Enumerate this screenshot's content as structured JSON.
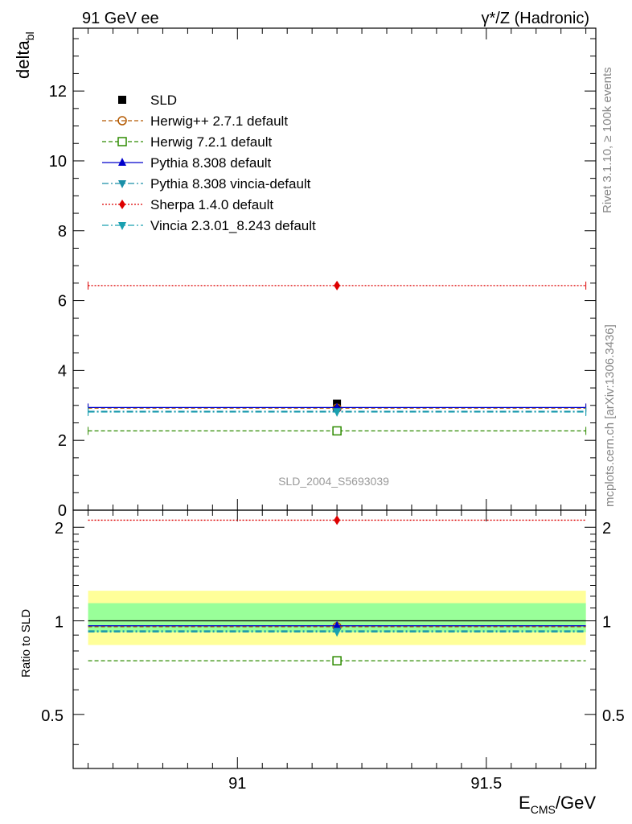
{
  "header": {
    "left": "91 GeV ee",
    "right_gamma": "γ",
    "right_rest": "*/Z (Hadronic)"
  },
  "side_text": {
    "rivet": "Rivet 3.1.10, ≥ 100k events",
    "mcplots": "mcplots.cern.ch [arXiv:1306.3436]"
  },
  "watermark": "SLD_2004_S5693039",
  "chart_data": [
    {
      "type": "scatter",
      "panel": "main",
      "ylabel_main": "delta",
      "ylabel_sub": "bl",
      "xlim": [
        90.67,
        91.72
      ],
      "ylim": [
        0,
        13.8
      ],
      "yticks": [
        0,
        2,
        4,
        6,
        8,
        10,
        12
      ],
      "x_point": 91.2,
      "x_range": [
        90.7,
        91.7
      ],
      "legend_position": "top-left",
      "series": [
        {
          "name": "SLD",
          "value": 3.05,
          "color": "#000000",
          "marker": "square",
          "line": "none"
        },
        {
          "name": "Herwig++ 2.7.1 default",
          "value": 2.92,
          "color": "#b35900",
          "marker": "open-circle",
          "line": "dashed"
        },
        {
          "name": "Herwig 7.2.1 default",
          "value": 2.27,
          "color": "#2e8b00",
          "marker": "open-square",
          "line": "dashed"
        },
        {
          "name": "Pythia 8.308 default",
          "value": 2.94,
          "color": "#0000cc",
          "marker": "triangle-up",
          "line": "solid"
        },
        {
          "name": "Pythia 8.308 vincia-default",
          "value": 2.83,
          "color": "#1a8fa8",
          "marker": "triangle-down",
          "line": "dashdot"
        },
        {
          "name": "Sherpa 1.4.0 default",
          "value": 6.43,
          "color": "#dd0000",
          "marker": "diamond",
          "line": "dotted"
        },
        {
          "name": "Vincia 2.3.01_8.243 default",
          "value": 2.81,
          "color": "#1aa0b0",
          "marker": "triangle-down",
          "line": "dashdot"
        }
      ]
    },
    {
      "type": "scatter",
      "panel": "ratio",
      "ylabel": "Ratio to SLD",
      "xlabel_main": "E",
      "xlabel_sub": "CMS",
      "xlabel_rest": "/GeV",
      "xlim": [
        90.67,
        91.72
      ],
      "ylim": [
        0.335,
        2.27
      ],
      "yticks": [
        0.5,
        1,
        2
      ],
      "ytick_labels": [
        "0.5",
        "1",
        "2"
      ],
      "xticks": [
        91,
        91.5
      ],
      "xtick_labels": [
        "91",
        "91.5"
      ],
      "bands": [
        {
          "lo": 0.836,
          "hi": 1.25,
          "color": "#ffff99"
        },
        {
          "lo": 0.92,
          "hi": 1.14,
          "color": "#99ff99"
        }
      ],
      "series": [
        {
          "name": "SLD",
          "value": 1.0,
          "color": "#000000",
          "line": "solid"
        },
        {
          "name": "Herwig++ 2.7.1 default",
          "value": 0.957,
          "color": "#b35900",
          "marker": "open-circle",
          "line": "dashed"
        },
        {
          "name": "Herwig 7.2.1 default",
          "value": 0.744,
          "color": "#2e8b00",
          "marker": "open-square",
          "line": "dashed"
        },
        {
          "name": "Pythia 8.308 default",
          "value": 0.964,
          "color": "#0000cc",
          "marker": "triangle-up",
          "line": "solid"
        },
        {
          "name": "Pythia 8.308 vincia-default",
          "value": 0.928,
          "color": "#1a8fa8",
          "marker": "triangle-down",
          "line": "dashdot"
        },
        {
          "name": "Sherpa 1.4.0 default",
          "value": 2.108,
          "color": "#dd0000",
          "marker": "diamond",
          "line": "dotted"
        },
        {
          "name": "Vincia 2.3.01_8.243 default",
          "value": 0.921,
          "color": "#1aa0b0",
          "marker": "triangle-down",
          "line": "dashdot"
        }
      ]
    }
  ]
}
